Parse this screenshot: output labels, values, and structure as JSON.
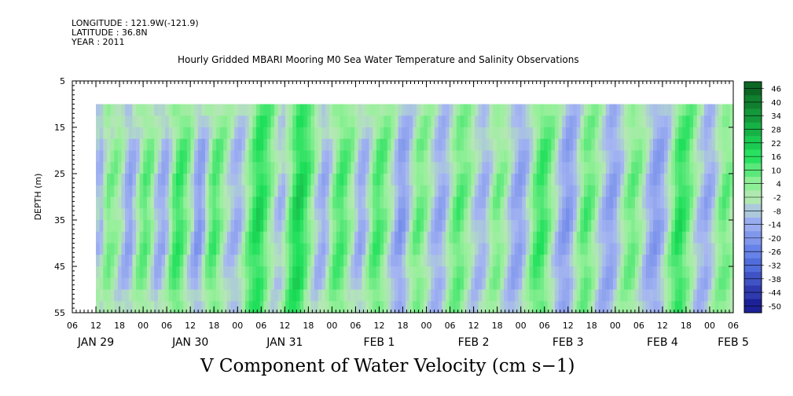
{
  "header": {
    "longitude": "LONGITUDE : 121.9W(-121.9)",
    "latitude": "LATITUDE : 36.8N",
    "year": "YEAR : 2011"
  },
  "subtitle": "Hourly Gridded MBARI Mooring M0 Sea Water Temperature and Salinity Observations",
  "colors": {
    "neg_strong": "#14148c",
    "neg_mid": "#5a78e6",
    "neg_light": "#a6b6f2",
    "near_zero": "#b4e8b4",
    "pos_light": "#96f09a",
    "pos_mid": "#1ee05a",
    "pos_strong": "#0a5a1e",
    "no_data": "#ffffff"
  },
  "chart_data": {
    "type": "heatmap",
    "title": "V Component of Water Velocity (cm s−1)",
    "ylabel": "DEPTH (m)",
    "xlabel": "",
    "y_reversed": true,
    "ylim": [
      5,
      55
    ],
    "y_ticks": [
      "5",
      "15",
      "25",
      "35",
      "45",
      "55"
    ],
    "x_range_hours": [
      "JAN 29 06:00",
      "FEB 5 06:00"
    ],
    "data_start": "JAN 29 12:00",
    "data_depth_range": [
      10,
      55
    ],
    "hour_ticks": [
      "06",
      "12",
      "18",
      "00",
      "06",
      "12",
      "18",
      "00",
      "06",
      "12",
      "18",
      "00",
      "06",
      "12",
      "18",
      "00",
      "06",
      "12",
      "18",
      "00",
      "06",
      "12",
      "18",
      "00",
      "06",
      "12",
      "18",
      "00",
      "06"
    ],
    "day_labels": [
      "JAN 29",
      "JAN 30",
      "JAN 31",
      "FEB  1",
      "FEB  2",
      "FEB  3",
      "FEB  4",
      "FEB  5"
    ],
    "colorbar_levels": [
      "46",
      "40",
      "34",
      "28",
      "22",
      "16",
      "10",
      "4",
      "-2",
      "-8",
      "-14",
      "-20",
      "-26",
      "-32",
      "-38",
      "-44",
      "-50"
    ],
    "colorbar_range": [
      -50,
      52
    ],
    "time_column_values": [
      -6,
      -8,
      4,
      10,
      8,
      6,
      2,
      -4,
      -12,
      -14,
      -6,
      2,
      10,
      14,
      10,
      4,
      -6,
      -10,
      -12,
      -8,
      4,
      14,
      18,
      16,
      10,
      4,
      -4,
      -14,
      -16,
      -10,
      2,
      12,
      16,
      12,
      6,
      0,
      -4,
      -8,
      -10,
      -8,
      -2,
      6,
      12,
      18,
      22,
      20,
      14,
      8,
      2,
      -4,
      -8,
      -6,
      4,
      12,
      20,
      24,
      22,
      16,
      10,
      4,
      -4,
      -8,
      -12,
      -8,
      2,
      10,
      14,
      16,
      12,
      6,
      2,
      -6,
      -12,
      -10,
      -4,
      6,
      14,
      16,
      12,
      8,
      2,
      -4,
      -10,
      -16,
      -14,
      -8,
      0,
      8,
      12,
      10,
      6,
      0,
      -6,
      -10,
      -12,
      -10,
      -4,
      4,
      10,
      14,
      12,
      8,
      4,
      -2,
      -6,
      -8,
      -10,
      -6,
      2,
      8,
      10,
      6,
      2,
      -4,
      -10,
      -12,
      -14,
      -10,
      -4,
      4,
      12,
      16,
      18,
      14,
      8,
      2,
      -4,
      -10,
      -14,
      -16,
      -12,
      -6,
      2,
      10,
      14,
      12,
      8,
      2,
      -4,
      -8,
      -12,
      -14,
      -12,
      -6,
      0,
      6,
      10,
      12,
      8,
      4,
      -2,
      -8,
      -12,
      -16,
      -14,
      -10,
      -4,
      2,
      10,
      18,
      20,
      16,
      12,
      6,
      0,
      -6,
      -8,
      -12,
      -10,
      -6,
      2,
      8,
      12,
      10,
      4
    ]
  }
}
